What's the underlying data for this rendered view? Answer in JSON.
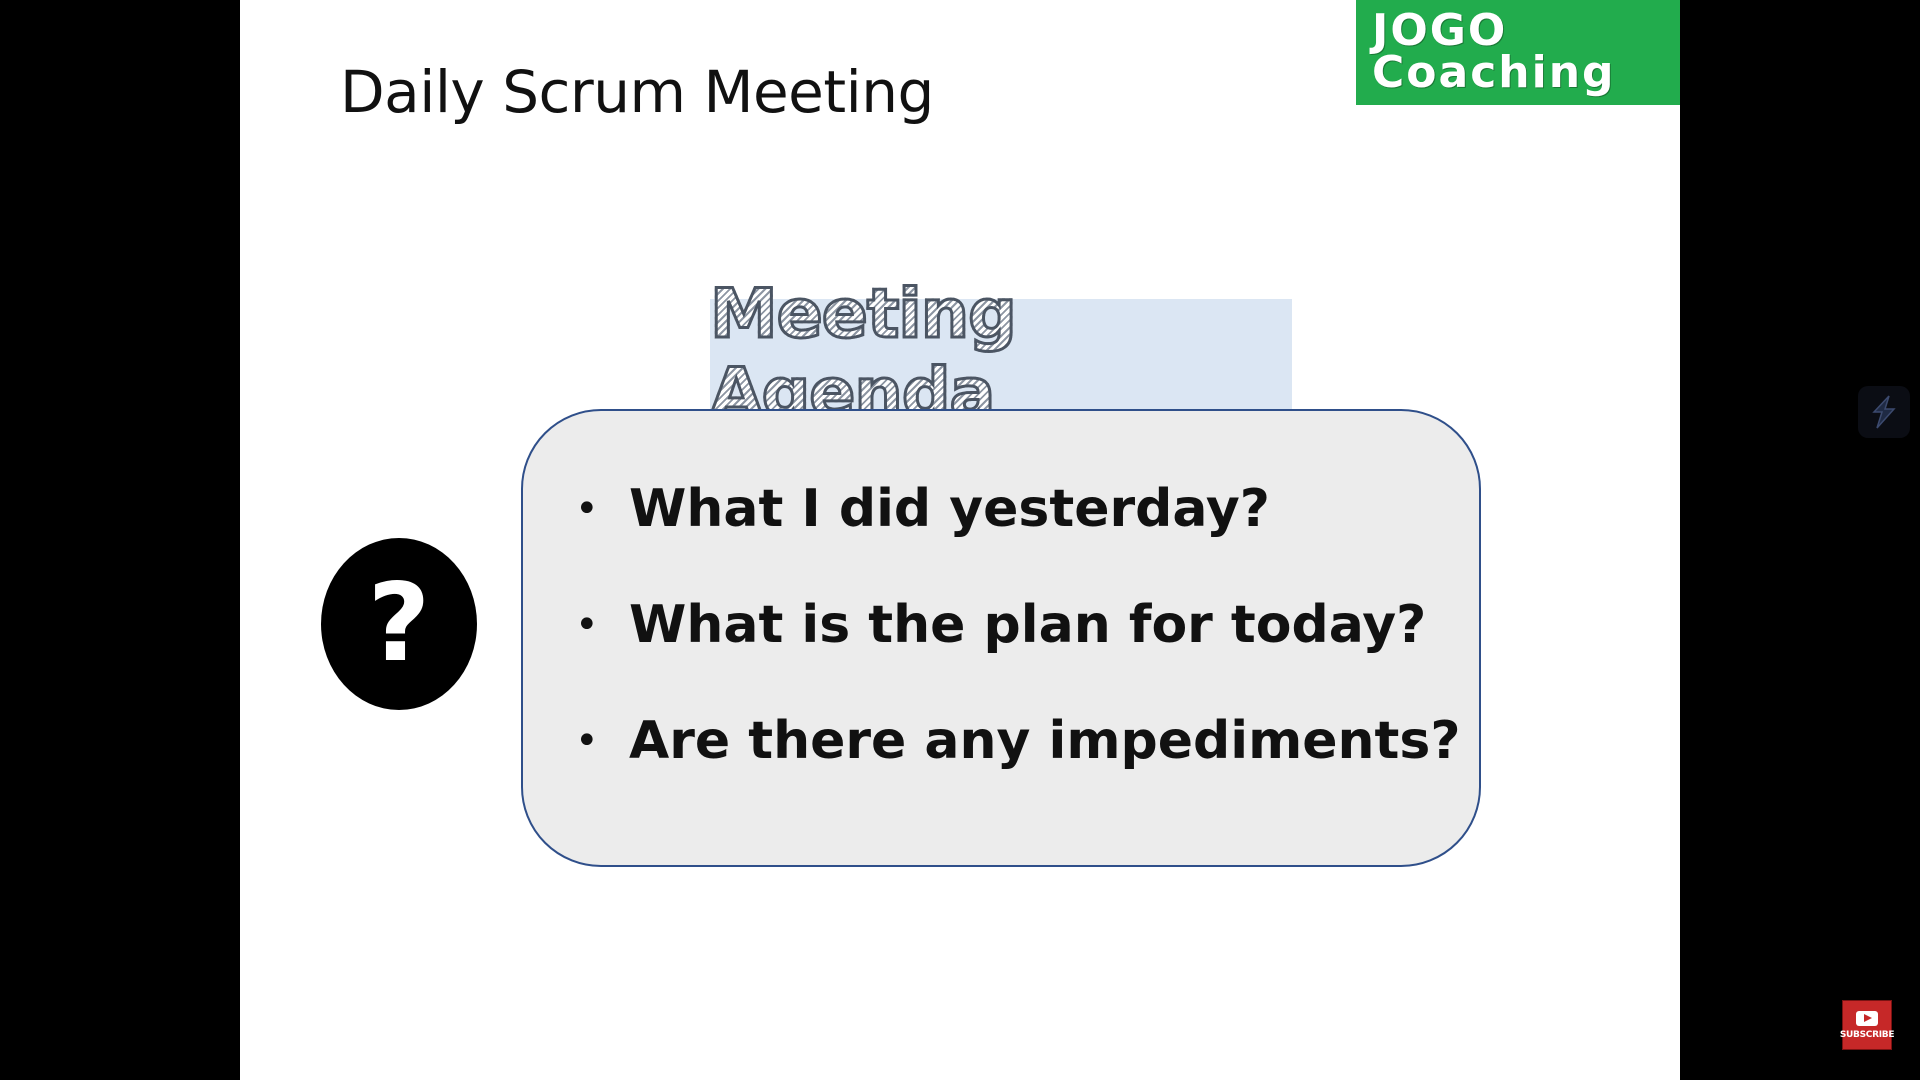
{
  "slide": {
    "title": "Daily Scrum Meeting",
    "logo": {
      "line1": "JOGO",
      "line2": "Coaching",
      "color": "#22ac4d"
    },
    "agenda": {
      "heading": "Meeting Agenda",
      "items": [
        {
          "bullet": "•",
          "text": "What I did yesterday?"
        },
        {
          "bullet": "•",
          "text": "What is the plan for today?"
        },
        {
          "bullet": "•",
          "text": "Are there any impediments?"
        }
      ]
    },
    "question_icon": {
      "glyph": "?",
      "icon": "question-icon"
    }
  },
  "overlay": {
    "side_icon": "lightning-icon",
    "subscribe_label": "SUBSCRIBE",
    "subscribe_color": "#c62828"
  }
}
